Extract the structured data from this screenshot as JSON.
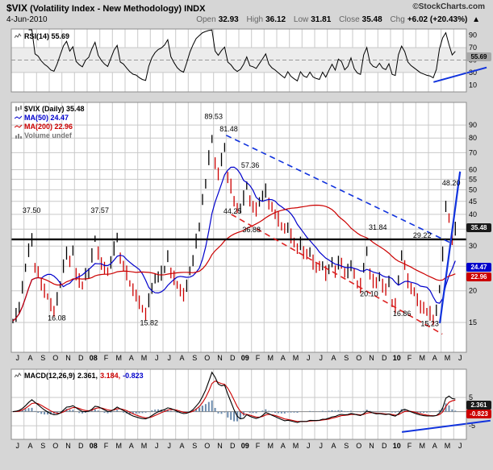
{
  "colors": {
    "bar_up": "#000000",
    "bar_down": "#cc0000",
    "ma50": "#0000cc",
    "ma200": "#cc0000",
    "macd_line": "#000000",
    "macd_signal": "#cc0000",
    "macd_hist": "#6d8cae",
    "trend_blue": "#1133dd",
    "trend_red": "#dd2222",
    "badge_dark": "#1a1a1a",
    "badge_blue": "#0000cc",
    "badge_red": "#cc0000",
    "badge_gray": "#a8a8a8",
    "volume_gray": "#777777",
    "grid": "#c9c9c9"
  },
  "header": {
    "symbol": "$VIX",
    "title": "(Volatility Index - New Methodology) INDX",
    "source": "©StockCharts.com",
    "date": "4-Jun-2010",
    "open_label": "Open",
    "open": "32.93",
    "high_label": "High",
    "high": "36.12",
    "low_label": "Low",
    "low": "31.81",
    "close_label": "Close",
    "close": "35.48",
    "chg_label": "Chg",
    "chg": "+6.02 (+20.43%)",
    "arrow": "▲"
  },
  "rsi_panel": {
    "label": "RSI(14) 55.69",
    "badge": "55.69"
  },
  "main_panel": {
    "legend_price": "$VIX (Daily) 35.48",
    "legend_ma50": "MA(50) 24.47",
    "legend_ma200": "MA(200) 22.96",
    "legend_volume": "Volume undef",
    "badge_close": "35.48",
    "badge_ma50": "24.47",
    "badge_ma200": "22.96"
  },
  "macd_panel": {
    "label": "MACD(12,26,9)",
    "macd_value": "2.361,",
    "signal_value": "3.184,",
    "hist_value": "-0.823",
    "badge_macd": "2.361",
    "badge_hist": "-0.823"
  },
  "chart_data": {
    "type": "line",
    "style": "ohlc-bars-with-indicator-panels",
    "months": [
      "J",
      "A",
      "S",
      "O",
      "N",
      "D",
      "08",
      "F",
      "M",
      "A",
      "M",
      "J",
      "J",
      "A",
      "S",
      "O",
      "N",
      "D",
      "09",
      "F",
      "M",
      "A",
      "M",
      "J",
      "J",
      "A",
      "S",
      "O",
      "N",
      "D",
      "10",
      "F",
      "M",
      "A",
      "M",
      "J"
    ],
    "price": {
      "scale": "log",
      "ylim": [
        11.5,
        110
      ],
      "ticks": [
        15,
        20,
        25,
        30,
        35,
        40,
        45,
        50,
        55,
        60,
        70,
        80,
        90
      ],
      "weekly_close": [
        15.2,
        16.0,
        17.5,
        20.5,
        24.5,
        29.0,
        32.0,
        24.5,
        23.5,
        21.5,
        20.0,
        19.0,
        17.5,
        17.0,
        18.5,
        21.0,
        25.0,
        28.5,
        26.0,
        28.5,
        23.5,
        22.0,
        21.0,
        23.0,
        24.0,
        27.5,
        32.0,
        28.0,
        26.0,
        24.5,
        23.5,
        26.0,
        29.5,
        32.5,
        26.5,
        25.5,
        23.5,
        21.5,
        20.0,
        19.5,
        18.0,
        16.8,
        16.2,
        18.5,
        20.5,
        22.0,
        23.0,
        23.5,
        24.5,
        27.0,
        24.0,
        22.5,
        21.0,
        20.0,
        19.5,
        21.0,
        23.5,
        26.5,
        31.5,
        36.0,
        45.0,
        54.0,
        67.0,
        79.5,
        63.0,
        58.5,
        66.0,
        72.5,
        56.0,
        52.0,
        45.5,
        41.5,
        43.0,
        46.5,
        52.5,
        44.5,
        43.5,
        42.0,
        44.5,
        47.0,
        50.0,
        44.5,
        42.0,
        40.5,
        38.5,
        36.5,
        34.5,
        36.0,
        33.0,
        31.0,
        29.0,
        31.0,
        28.5,
        27.5,
        28.5,
        26.0,
        25.0,
        24.5,
        25.5,
        23.5,
        24.5,
        25.5,
        24.0,
        26.0,
        25.5,
        23.5,
        24.0,
        25.5,
        23.0,
        21.5,
        21.0,
        25.0,
        28.0,
        23.5,
        22.0,
        21.5,
        22.5,
        21.0,
        20.5,
        21.5,
        18.0,
        17.5,
        22.5,
        27.0,
        25.5,
        22.0,
        20.5,
        19.5,
        18.5,
        17.5,
        17.0,
        16.5,
        16.3,
        15.7,
        16.5,
        20.5,
        28.0,
        43.5,
        38.0,
        32.0,
        35.5
      ],
      "ma_windows_weeks": {
        "ma50": 10,
        "ma200": 40
      },
      "last": {
        "close": 35.48,
        "ma50": 24.47,
        "ma200": 22.96
      },
      "resistance": 31.9,
      "trendlines": [
        {
          "m1": 17.0,
          "v1": 82.0,
          "m2": 34.7,
          "v2": 31.0,
          "color": "#1133dd",
          "dash": true,
          "w": 1.6
        },
        {
          "m1": 17.4,
          "v1": 40.0,
          "m2": 34.1,
          "v2": 13.5,
          "color": "#dd2222",
          "dash": true,
          "w": 1.6
        },
        {
          "m1": 33.9,
          "v1": 14.9,
          "m2": 35.5,
          "v2": 59.0,
          "color": "#1133dd",
          "dash": false,
          "w": 2.2
        }
      ],
      "annotations": [
        {
          "m": 1.6,
          "v": 40.5,
          "text": "37.50"
        },
        {
          "m": 3.6,
          "v": 15.3,
          "text": "16.08"
        },
        {
          "m": 7.0,
          "v": 40.5,
          "text": "37.57"
        },
        {
          "m": 10.9,
          "v": 14.6,
          "text": "15.82"
        },
        {
          "m": 16.0,
          "v": 95.0,
          "text": "89.53"
        },
        {
          "m": 17.2,
          "v": 85.0,
          "text": "81.48"
        },
        {
          "m": 18.9,
          "v": 61.0,
          "text": "57.36"
        },
        {
          "m": 17.5,
          "v": 40.3,
          "text": "44.25"
        },
        {
          "m": 19.0,
          "v": 34.0,
          "text": "36.88"
        },
        {
          "m": 29.0,
          "v": 34.8,
          "text": "31.84"
        },
        {
          "m": 32.5,
          "v": 32.3,
          "text": "29.22"
        },
        {
          "m": 28.3,
          "v": 19.0,
          "text": "20.10"
        },
        {
          "m": 30.9,
          "v": 15.9,
          "text": "16.86"
        },
        {
          "m": 33.1,
          "v": 14.5,
          "text": "15.23"
        },
        {
          "m": 34.8,
          "v": 52.0,
          "text": "48.20"
        }
      ]
    },
    "rsi": {
      "label_period": 14,
      "calc_period": 5,
      "last": 55.69,
      "ticks": [
        90,
        70,
        50,
        30,
        10
      ],
      "band": [
        30,
        70
      ],
      "mid": 50,
      "trendline": {
        "m1": 33.4,
        "v1": 14.5,
        "m2": 37.6,
        "v2": 38.0,
        "color": "#1133dd"
      }
    },
    "macd": {
      "shown_params": "12,26,9",
      "fast": 5,
      "slow": 11,
      "signal": 4,
      "last": {
        "macd": 2.361,
        "signal": 3.184,
        "hist": -0.823
      },
      "ticks": [
        5,
        0,
        -5
      ],
      "trendline": {
        "m1": 30.9,
        "v1": -7.2,
        "m2": 37.9,
        "v2": -3.2,
        "color": "#1133dd"
      }
    }
  }
}
